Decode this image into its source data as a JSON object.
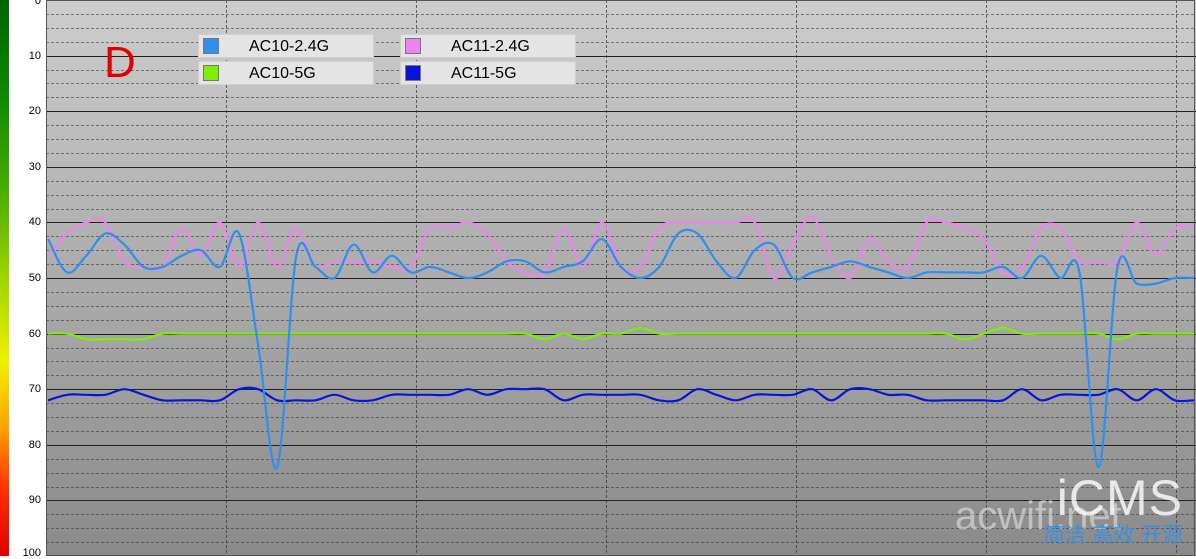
{
  "chart_data": {
    "type": "line",
    "title": "",
    "xlabel": "",
    "ylabel": "",
    "panel_label": "D",
    "ylim": [
      0,
      100
    ],
    "y_inverted": true,
    "y_ticks": [
      "0",
      "10",
      "20",
      "30",
      "40",
      "50",
      "60",
      "70",
      "80",
      "90",
      "100"
    ],
    "grid": true,
    "legend_position": "top-left",
    "x": [
      0,
      1,
      2,
      3,
      4,
      5,
      6,
      7,
      8,
      9,
      10,
      11,
      12,
      13,
      14,
      15,
      16,
      17,
      18,
      19,
      20,
      21,
      22,
      23,
      24,
      25,
      26,
      27,
      28,
      29,
      30,
      31,
      32,
      33,
      34,
      35,
      36,
      37,
      38,
      39,
      40,
      41,
      42,
      43,
      44,
      45,
      46,
      47,
      48,
      49,
      50,
      51,
      52,
      53,
      54,
      55,
      56,
      57,
      58,
      59,
      60
    ],
    "series": [
      {
        "name": "AC10-2.4G",
        "color": "#2f8ff0",
        "values": [
          43,
          49,
          46,
          42,
          44,
          48,
          48,
          46,
          45,
          48,
          42,
          62,
          84,
          46,
          48,
          50,
          44,
          49,
          46,
          49,
          48,
          49,
          50,
          49,
          47,
          47,
          49,
          48,
          47,
          43,
          48,
          50,
          48,
          42,
          42,
          47,
          50,
          45,
          44,
          50,
          49,
          48,
          47,
          48,
          49,
          50,
          49,
          49,
          49,
          49,
          48,
          50,
          46,
          50,
          49,
          84,
          48,
          51,
          51,
          50,
          50
        ]
      },
      {
        "name": "AC10-5G",
        "color": "#7cf000",
        "values": [
          60,
          60,
          61,
          61,
          61,
          61,
          60,
          60,
          60,
          60,
          60,
          60,
          60,
          60,
          60,
          60,
          60,
          60,
          60,
          60,
          60,
          60,
          60,
          60,
          60,
          60,
          61,
          60,
          61,
          60,
          60,
          59,
          60,
          60,
          60,
          60,
          60,
          60,
          60,
          60,
          60,
          60,
          60,
          60,
          60,
          60,
          60,
          60,
          61,
          60,
          59,
          60,
          60,
          60,
          60,
          60,
          61,
          60,
          60,
          60,
          60
        ]
      },
      {
        "name": "AC11-2.4G",
        "color": "#ee82ee",
        "values": [
          46,
          42,
          40,
          40,
          47,
          48,
          48,
          41,
          46,
          40,
          48,
          40,
          48,
          41,
          48,
          47,
          47,
          47,
          48,
          48,
          41,
          41,
          40,
          42,
          47,
          49,
          49,
          41,
          48,
          40,
          48,
          48,
          41,
          40,
          40,
          40,
          40,
          40,
          50,
          44,
          39,
          46,
          50,
          43,
          47,
          48,
          40,
          40,
          41,
          43,
          49,
          48,
          41,
          41,
          47,
          47,
          47,
          40,
          46,
          41,
          41
        ]
      },
      {
        "name": "AC11-5G",
        "color": "#0a14d8",
        "values": [
          72,
          71,
          71,
          71,
          70,
          71,
          72,
          72,
          72,
          72,
          70,
          70,
          72,
          72,
          72,
          71,
          72,
          72,
          71,
          71,
          71,
          71,
          70,
          71,
          70,
          70,
          70,
          72,
          71,
          71,
          71,
          71,
          72,
          72,
          70,
          71,
          72,
          71,
          71,
          71,
          70,
          72,
          70,
          70,
          71,
          71,
          72,
          72,
          72,
          72,
          72,
          70,
          72,
          71,
          71,
          71,
          70,
          72,
          70,
          72,
          72
        ]
      }
    ]
  },
  "watermark": {
    "brand": "iCMS",
    "url": "acwifi.net",
    "slogan": "简洁 高效 开源"
  }
}
